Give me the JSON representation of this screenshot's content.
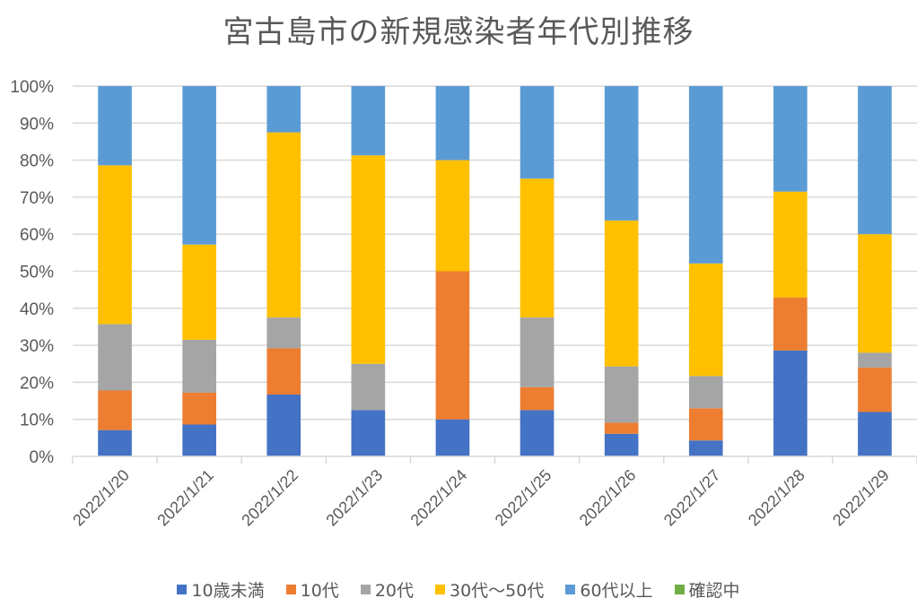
{
  "chart_data": {
    "type": "bar",
    "stacked": true,
    "percent_stacked": true,
    "title": "宮古島市の新規感染者年代別推移",
    "xlabel": "",
    "ylabel": "",
    "ylim": [
      0,
      100
    ],
    "yticks": [
      "0%",
      "10%",
      "20%",
      "30%",
      "40%",
      "50%",
      "60%",
      "70%",
      "80%",
      "90%",
      "100%"
    ],
    "grid": true,
    "legend_position": "bottom",
    "categories": [
      "2022/1/20",
      "2022/1/21",
      "2022/1/22",
      "2022/1/23",
      "2022/1/24",
      "2022/1/25",
      "2022/1/26",
      "2022/1/27",
      "2022/1/28",
      "2022/1/29"
    ],
    "series": [
      {
        "name": "10歳未満",
        "color": "#4472C4",
        "values": [
          7.1,
          8.6,
          16.7,
          12.5,
          10.0,
          12.5,
          6.1,
          4.3,
          28.6,
          12.0
        ]
      },
      {
        "name": "10代",
        "color": "#ED7D31",
        "values": [
          10.7,
          8.6,
          12.5,
          0.0,
          40.0,
          6.2,
          3.0,
          8.7,
          14.3,
          12.0
        ]
      },
      {
        "name": "20代",
        "color": "#A5A5A5",
        "values": [
          17.9,
          14.3,
          8.3,
          12.5,
          0.0,
          18.8,
          15.2,
          8.7,
          0.0,
          4.0
        ]
      },
      {
        "name": "30代〜50代",
        "color": "#FFC000",
        "values": [
          42.9,
          25.7,
          50.0,
          56.3,
          30.0,
          37.5,
          39.4,
          30.4,
          28.6,
          32.0
        ]
      },
      {
        "name": "60代以上",
        "color": "#5B9BD5",
        "values": [
          21.4,
          42.8,
          12.5,
          18.7,
          20.0,
          25.0,
          36.3,
          47.9,
          28.5,
          40.0
        ]
      },
      {
        "name": "確認中",
        "color": "#70AD47",
        "values": [
          0,
          0,
          0,
          0,
          0,
          0,
          0,
          0,
          0,
          0
        ]
      }
    ]
  }
}
